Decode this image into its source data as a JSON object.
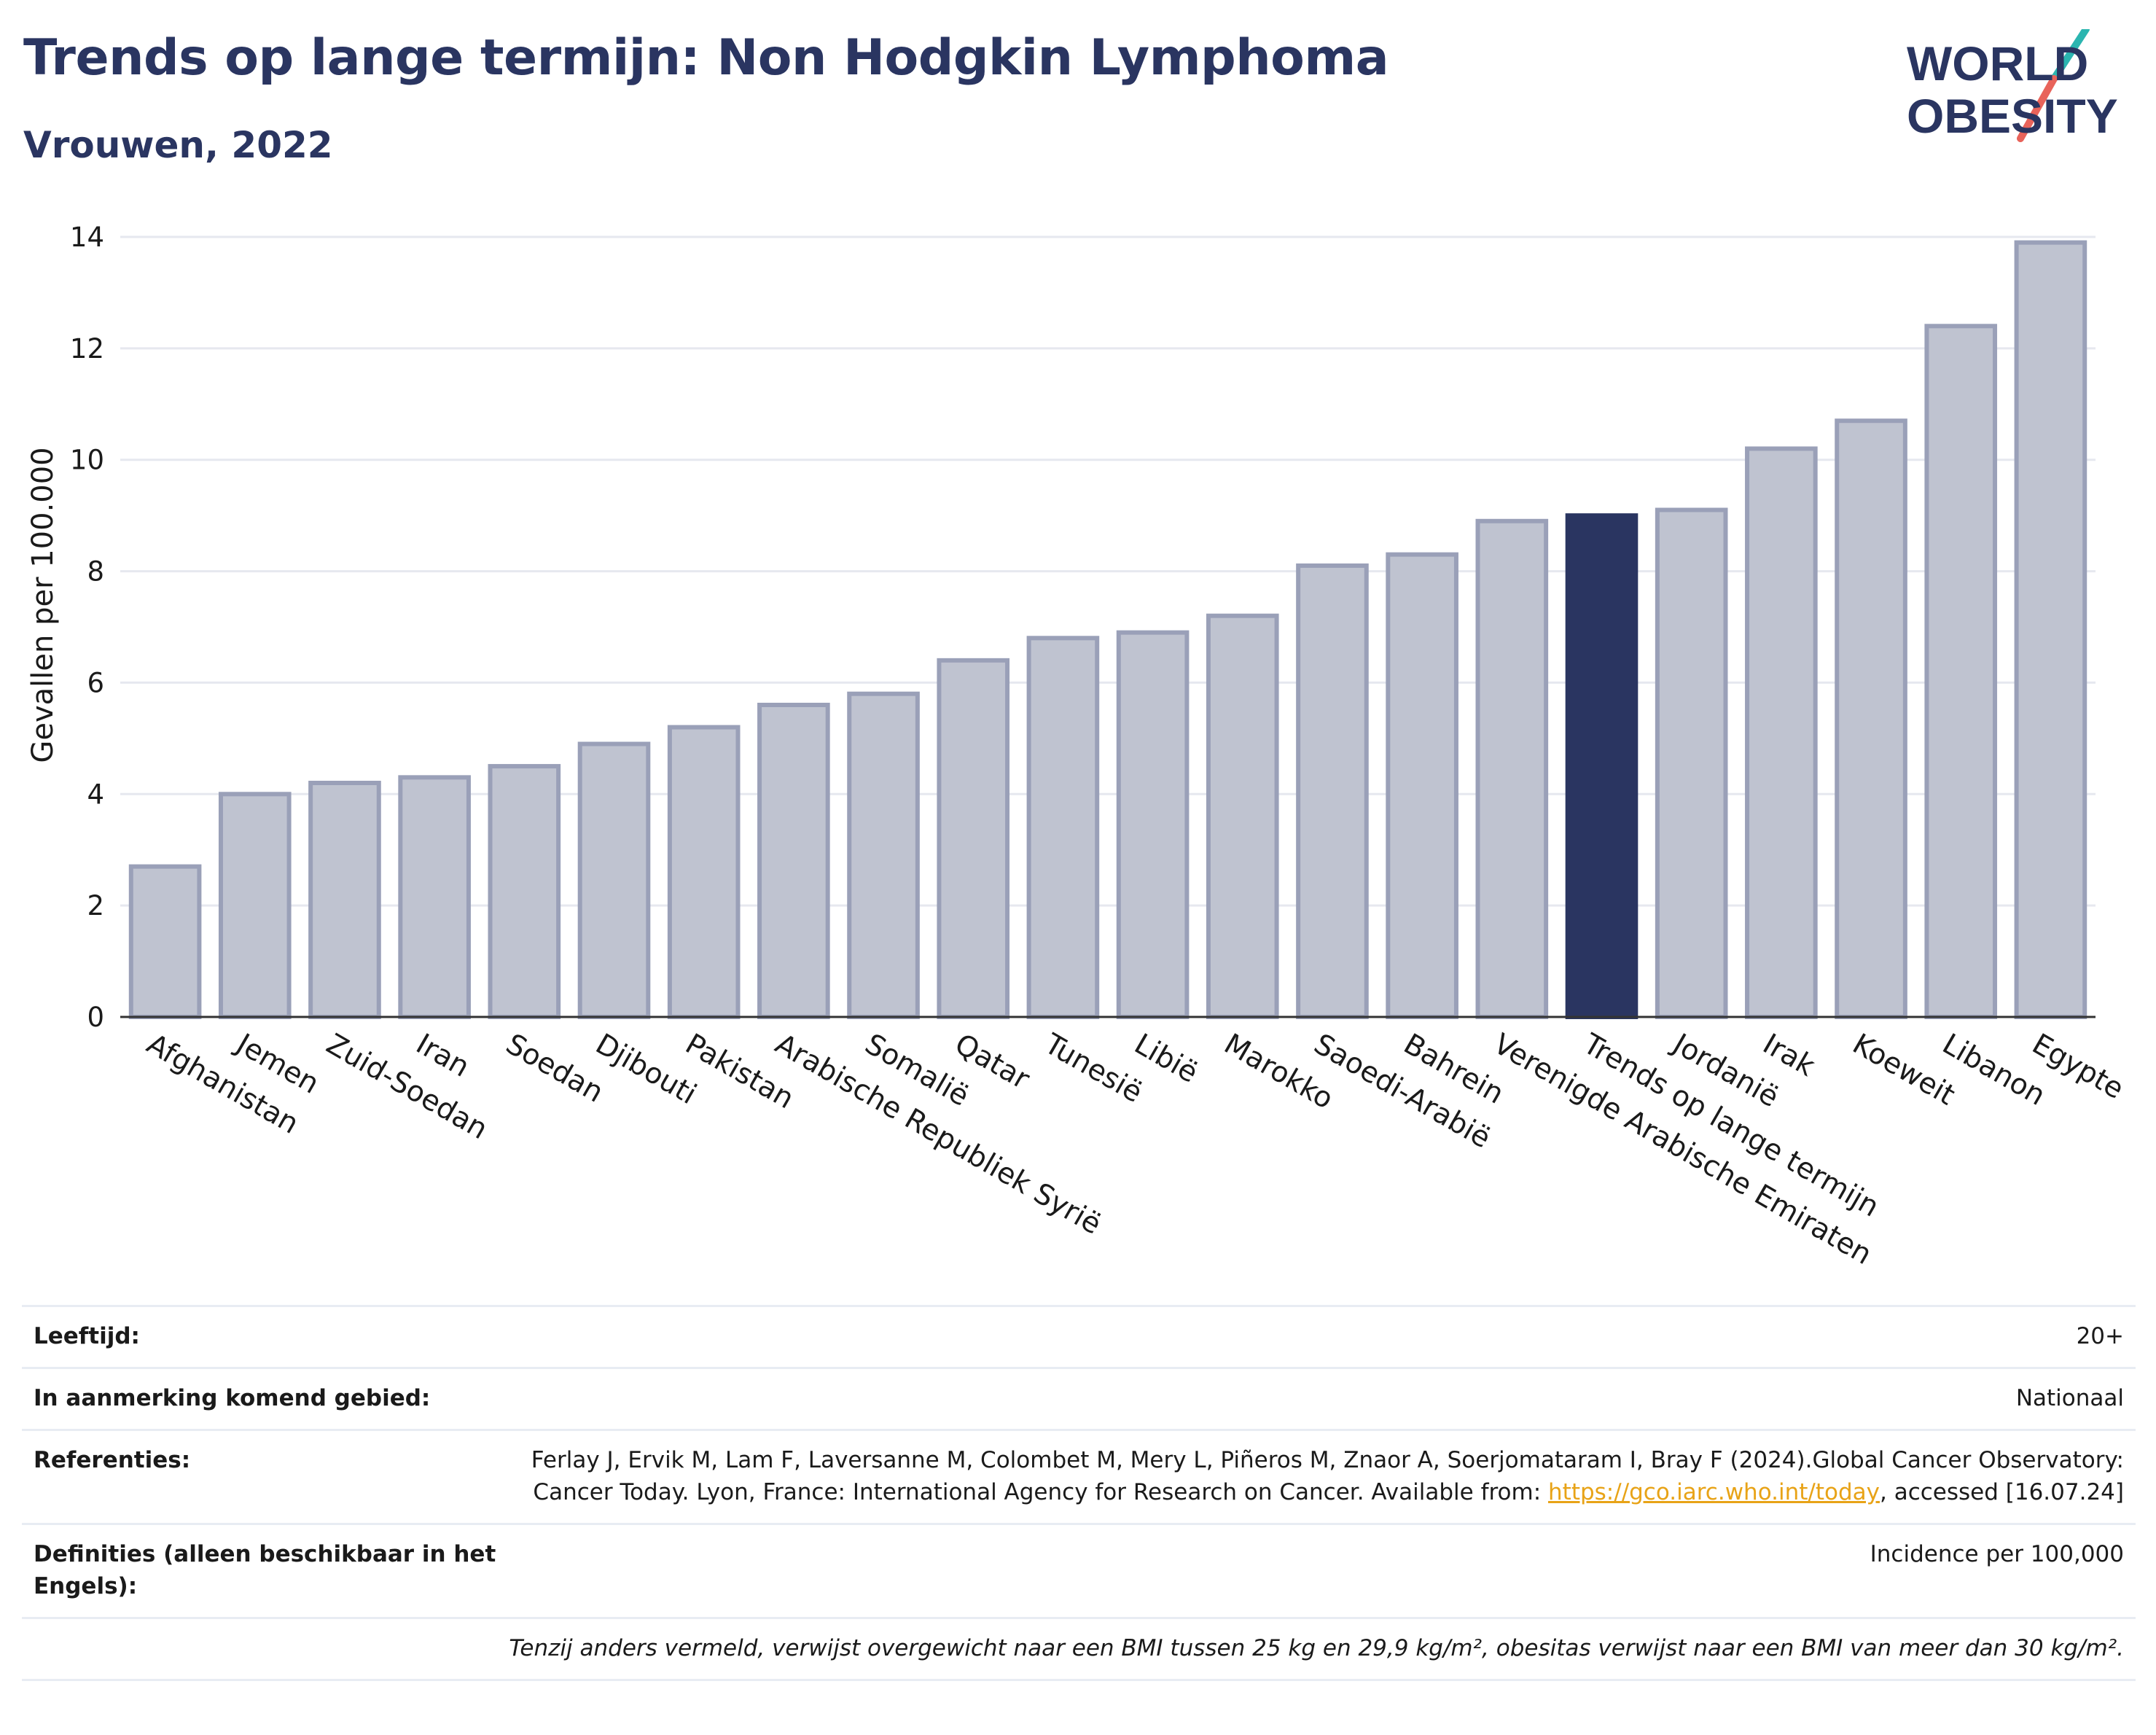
{
  "header": {
    "title": "Trends op lange termijn: Non Hodgkin Lymphoma",
    "subtitle": "Vrouwen, 2022"
  },
  "logo": {
    "line1": "WORLD",
    "line2": "OBESITY",
    "color_text": "#2a3561",
    "color_slash_top": "#2bb5b0",
    "color_slash_bottom": "#e8635a"
  },
  "chart_data": {
    "type": "bar",
    "ylabel": "Gevallen per 100.000",
    "xlabel": "",
    "ylim": [
      0,
      14
    ],
    "yticks": [
      0,
      2,
      4,
      6,
      8,
      10,
      12,
      14
    ],
    "grid": true,
    "categories": [
      "Afghanistan",
      "Jemen",
      "Zuid-Soedan",
      "Iran",
      "Soedan",
      "Djibouti",
      "Pakistan",
      "Arabische Republiek Syrië",
      "Somalië",
      "Qatar",
      "Tunesië",
      "Libië",
      "Marokko",
      "Saoedi-Arabië",
      "Bahrein",
      "Verenigde Arabische Emiraten",
      "Trends op lange termijn",
      "Jordanië",
      "Irak",
      "Koeweit",
      "Libanon",
      "Egypte"
    ],
    "values": [
      2.7,
      4.0,
      4.2,
      4.3,
      4.5,
      4.9,
      5.2,
      5.6,
      5.8,
      6.4,
      6.8,
      6.9,
      7.2,
      8.1,
      8.3,
      8.9,
      9.0,
      9.1,
      10.2,
      10.7,
      12.4,
      13.9
    ],
    "highlight": "Trends op lange termijn",
    "colors": {
      "bar": "#bfc3d0",
      "bar_border": "#9aa0b8",
      "highlight": "#2a3561",
      "grid": "#e6e8ef",
      "axis": "#333333"
    }
  },
  "info": {
    "rows": [
      {
        "label": "Leeftijd:",
        "value": "20+"
      },
      {
        "label": "In aanmerking komend gebied:",
        "value": "Nationaal"
      },
      {
        "label": "Referenties:",
        "value_pre": "Ferlay J, Ervik M, Lam F, Laversanne M, Colombet M, Mery L, Piñeros M, Znaor A, Soerjomataram I, Bray F (2024).Global Cancer Observatory: Cancer Today. Lyon, France: International Agency for Research on Cancer. Available from: ",
        "link": "https://gco.iarc.who.int/today",
        "value_post": ", accessed [16.07.24]"
      },
      {
        "label": "Definities (alleen beschikbaar in het Engels):",
        "value": "Incidence per 100,000"
      }
    ],
    "note": "Tenzij anders vermeld, verwijst overgewicht naar een BMI tussen 25 kg en 29,9 kg/m², obesitas verwijst naar een BMI van meer dan 30 kg/m²."
  }
}
